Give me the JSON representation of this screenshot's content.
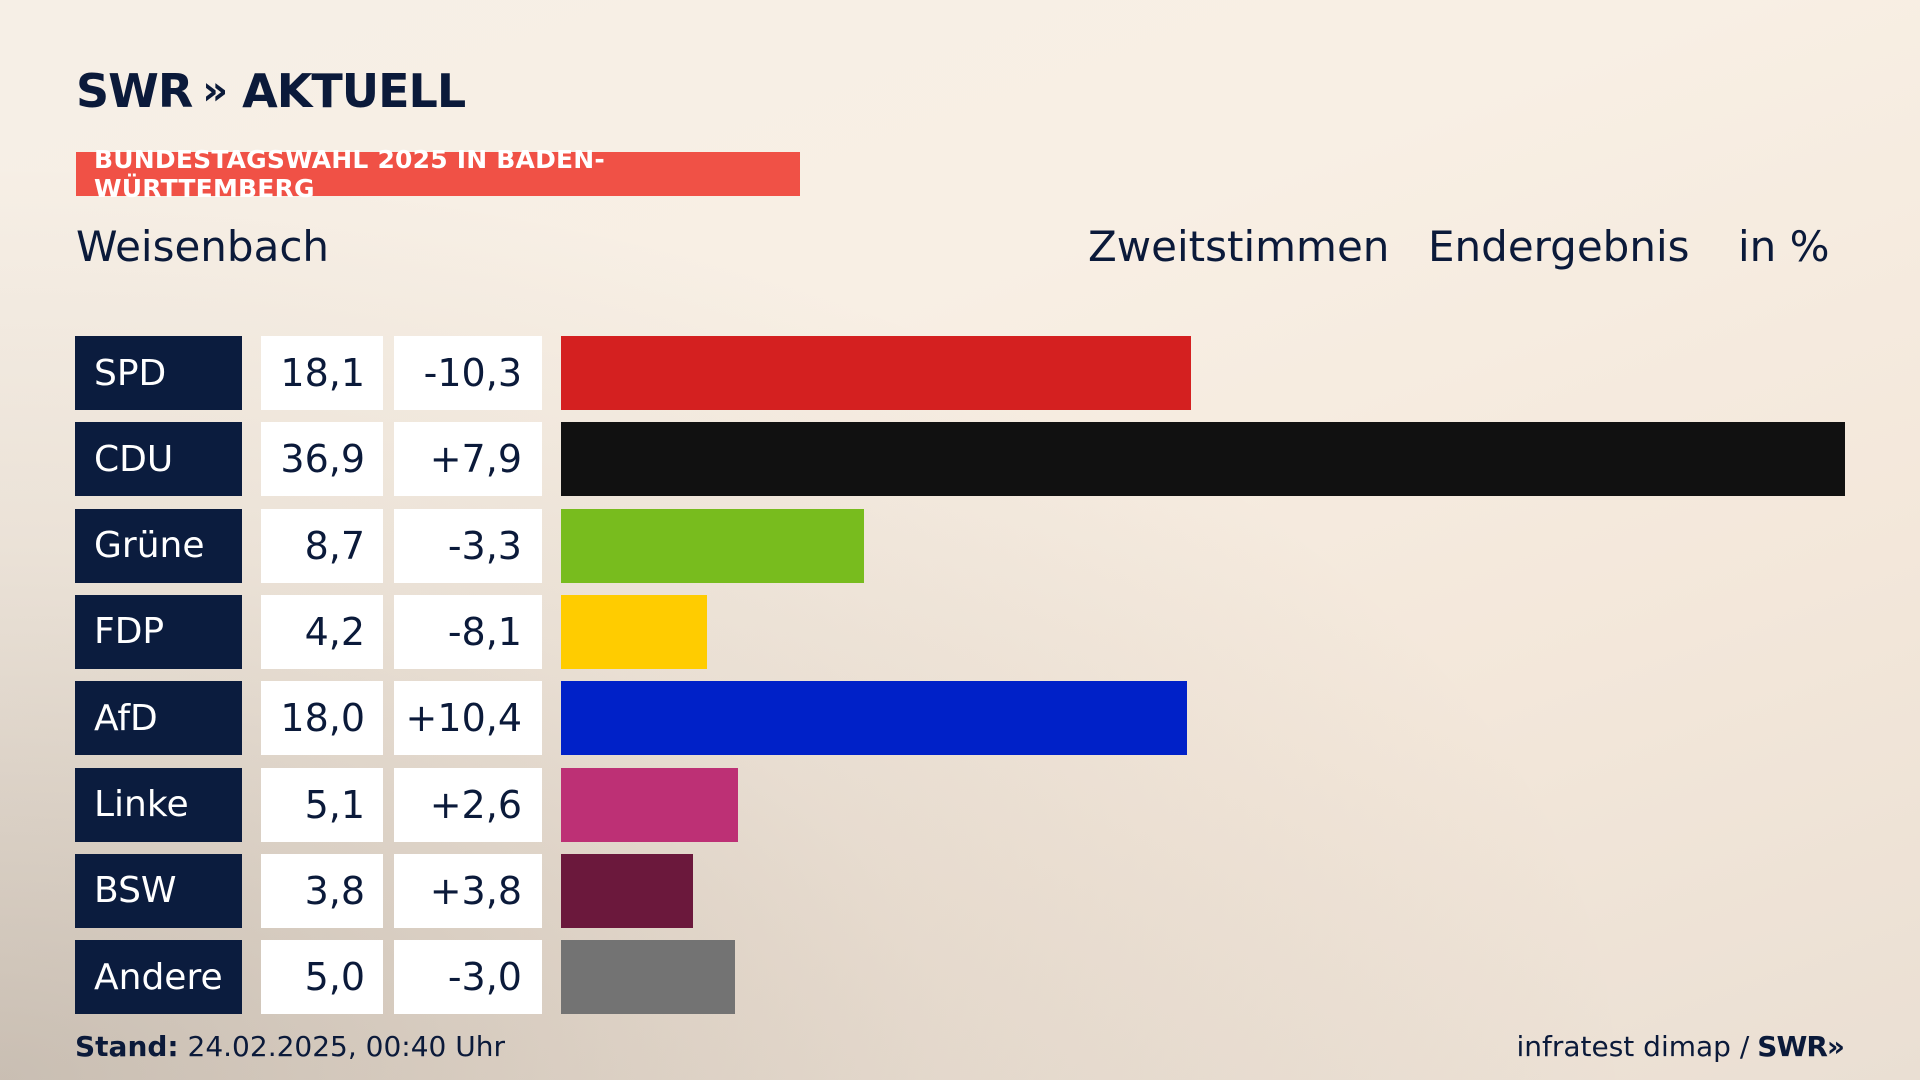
{
  "brand": {
    "name": "SWR",
    "chevrons": "»",
    "suffix": "AKTUELL"
  },
  "banner": "BUNDESTAGSWAHL 2025 IN BADEN-WÜRTTEMBERG",
  "place": "Weisenbach",
  "headers": {
    "vote_type": "Zweitstimmen",
    "result_type": "Endergebnis",
    "unit": "in %"
  },
  "chart_data": {
    "type": "bar",
    "categories": [
      "SPD",
      "CDU",
      "Grüne",
      "FDP",
      "AfD",
      "Linke",
      "BSW",
      "Andere"
    ],
    "values": [
      18.1,
      36.9,
      8.7,
      4.2,
      18.0,
      5.1,
      3.8,
      5.0
    ],
    "value_labels": [
      "18,1",
      "36,9",
      "8,7",
      "4,2",
      "18,0",
      "5,1",
      "3,8",
      "5,0"
    ],
    "diff_labels": [
      "-10,3",
      "+7,9",
      "-3,3",
      "-8,1",
      "+10,4",
      "+2,6",
      "+3,8",
      "-3,0"
    ],
    "colors": [
      "#d42020",
      "#111111",
      "#78bc1e",
      "#ffcc00",
      "#0021c8",
      "#bd3075",
      "#6b183c",
      "#737373"
    ],
    "xlim": [
      0,
      36.9
    ]
  },
  "footer": {
    "stand_label": "Stand:",
    "stand_value": "24.02.2025, 00:40 Uhr",
    "source": "infratest dimap /",
    "source_brand": "SWR",
    "source_chevrons": "»"
  }
}
